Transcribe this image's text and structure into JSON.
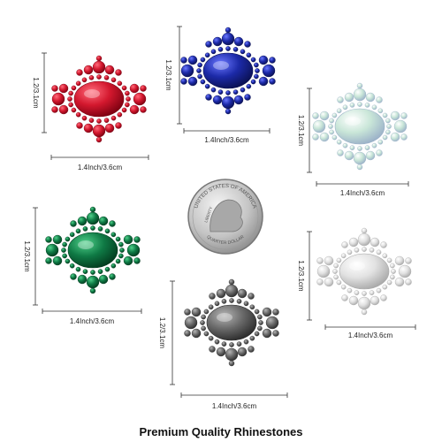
{
  "items": [
    {
      "width_label": "1.4Inch/3.6cm",
      "height_label": "1.2/3.1cm"
    },
    {
      "width_label": "1.4Inch/3.6cm",
      "height_label": "1.2/3.1cm"
    },
    {
      "width_label": "1.4Inch/3.6cm",
      "height_label": "1.2/3.1cm"
    },
    {
      "width_label": "1.4Inch/3.6cm",
      "height_label": "1.2/3.1cm"
    },
    {
      "width_label": "1.4Inch/3.6cm",
      "height_label": "1.2/3.1cm"
    },
    {
      "width_label": "1.4Inch/3.6cm",
      "height_label": "1.2/3.1cm"
    }
  ],
  "coin": {
    "top_text": "UNITED STATES OF AMERICA",
    "motto": "LIBERTY",
    "bottom_text": "QUARTER DOLLAR"
  },
  "caption": "Premium Quality Rhinestones"
}
